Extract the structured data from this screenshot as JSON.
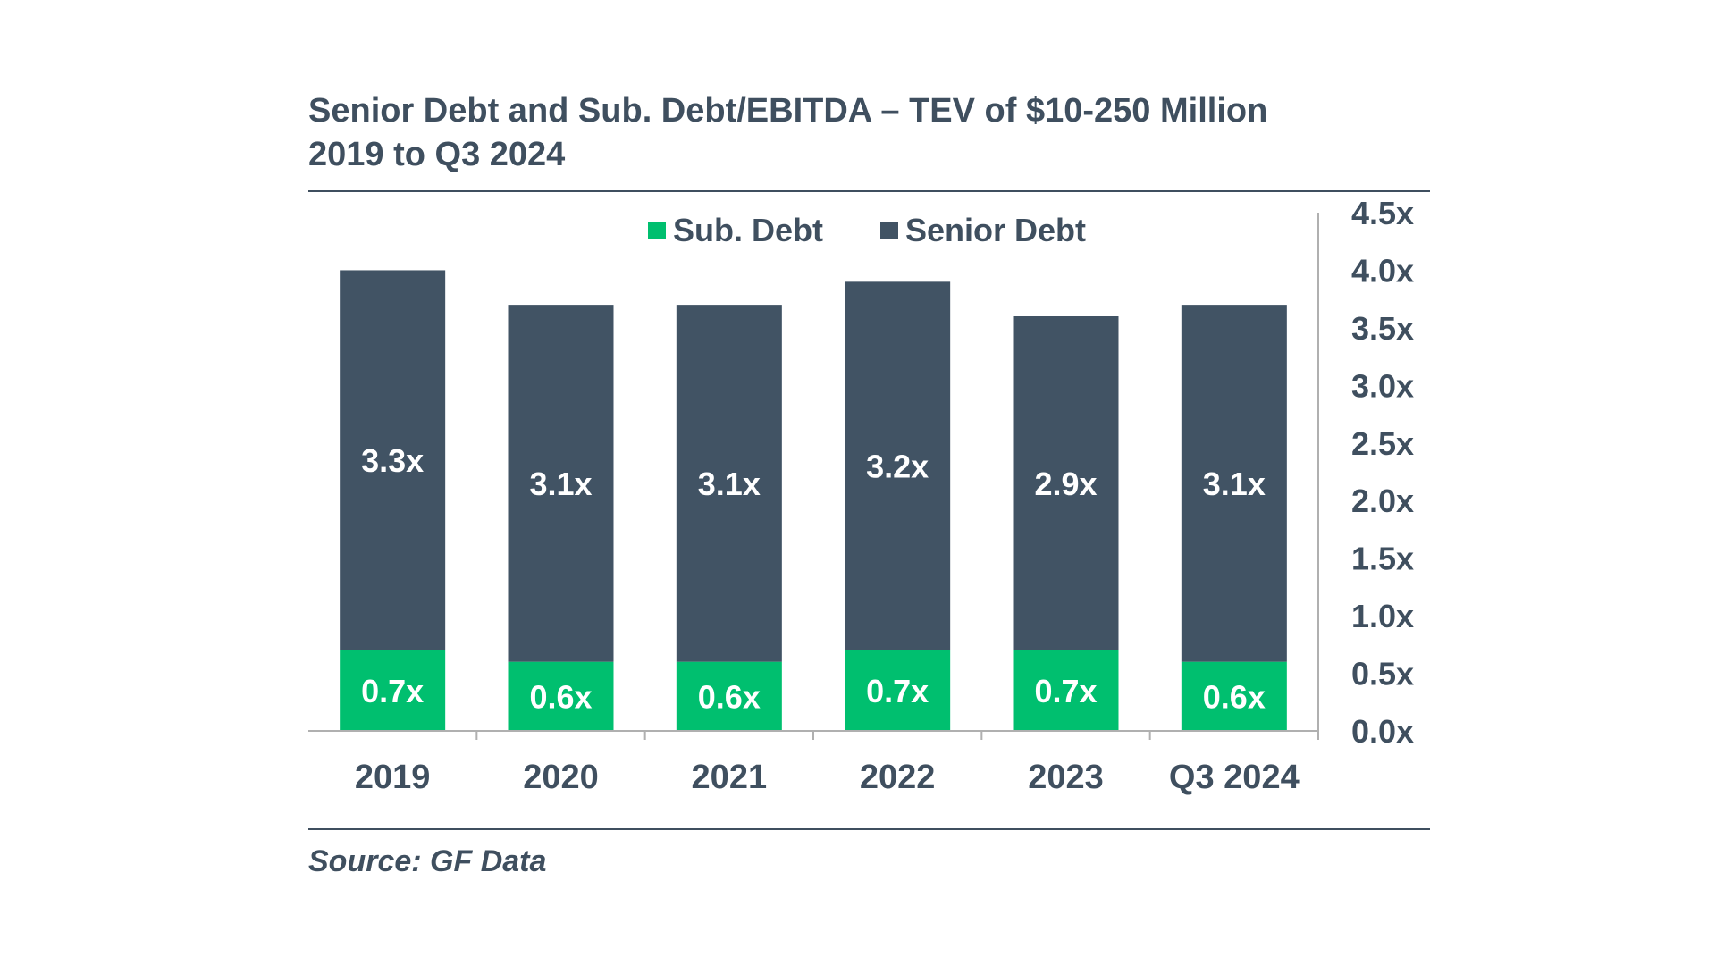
{
  "title_line1": "Senior Debt and Sub. Debt/EBITDA – TEV of $10-250 Million",
  "title_line2": "2019 to Q3 2024",
  "source": "Source: GF Data",
  "colors": {
    "sub_debt": "#00bf6f",
    "senior_debt": "#415364",
    "text": "#3f4f5f",
    "label_text": "#ffffff",
    "axis": "#b0b0b0"
  },
  "chart_data": {
    "type": "bar",
    "stacked": true,
    "categories": [
      "2019",
      "2020",
      "2021",
      "2022",
      "2023",
      "Q3 2024"
    ],
    "series": [
      {
        "name": "Sub. Debt",
        "values": [
          0.7,
          0.6,
          0.6,
          0.7,
          0.7,
          0.6
        ],
        "labels": [
          "0.7x",
          "0.6x",
          "0.6x",
          "0.7x",
          "0.7x",
          "0.6x"
        ]
      },
      {
        "name": "Senior Debt",
        "values": [
          3.3,
          3.1,
          3.1,
          3.2,
          2.9,
          3.1
        ],
        "labels": [
          "3.3x",
          "3.1x",
          "3.1x",
          "3.2x",
          "2.9x",
          "3.1x"
        ]
      }
    ],
    "ylim": [
      0,
      4.5
    ],
    "yticks": [
      "0.0x",
      "0.5x",
      "1.0x",
      "1.5x",
      "2.0x",
      "2.5x",
      "3.0x",
      "3.5x",
      "4.0x",
      "4.5x"
    ],
    "yaxis_position": "right",
    "legend_position": "top",
    "grid": false
  }
}
